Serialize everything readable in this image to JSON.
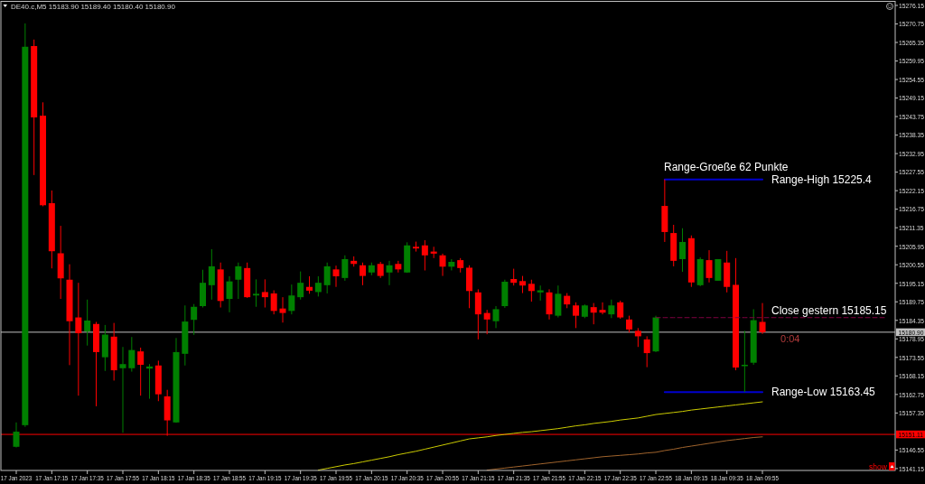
{
  "chart_data": {
    "type": "candlestick",
    "title": "DE40.c,M5 15183.90 15189.40 15180.40 15180.90",
    "categories": [
      "17 Jan 2023",
      null,
      null,
      null,
      "17 Jan 17:15",
      null,
      null,
      null,
      "17 Jan 17:35",
      null,
      null,
      null,
      "17 Jan 17:55",
      null,
      null,
      null,
      "17 Jan 18:15",
      null,
      null,
      null,
      "17 Jan 18:35",
      null,
      null,
      null,
      "17 Jan 18:55",
      null,
      null,
      null,
      "17 Jan 19:15",
      null,
      null,
      null,
      "17 Jan 19:35",
      null,
      null,
      null,
      "17 Jan 19:55",
      null,
      null,
      null,
      "17 Jan 20:15",
      null,
      null,
      null,
      "17 Jan 20:35",
      null,
      null,
      null,
      "17 Jan 20:55",
      null,
      null,
      null,
      "17 Jan 21:15",
      null,
      null,
      null,
      "17 Jan 21:35",
      null,
      null,
      null,
      "17 Jan 21:55",
      null,
      null,
      null,
      "17 Jan 22:15",
      null,
      null,
      null,
      "17 Jan 22:35",
      null,
      null,
      null,
      "17 Jan 22:55",
      null,
      null,
      null,
      "18 Jan 09:15",
      null,
      null,
      null,
      "18 Jan 09:35",
      null,
      null,
      null,
      "18 Jan 09:55",
      null,
      null,
      null,
      null,
      null,
      null,
      null,
      null,
      null,
      null,
      null,
      null,
      null,
      null
    ],
    "ohlc": [
      [
        15147.5,
        15154.6,
        15147.3,
        15151.9
      ],
      [
        15153.8,
        15270.9,
        15153.3,
        15264.1
      ],
      [
        15264.3,
        15266.2,
        15226.7,
        15243.5
      ],
      [
        15244.0,
        15247.9,
        15217.6,
        15217.9
      ],
      [
        15218.5,
        15222.2,
        15199.5,
        15204.5
      ],
      [
        15203.9,
        15211.9,
        15190.6,
        15196.6
      ],
      [
        15196.2,
        15200.7,
        15171.3,
        15184.1
      ],
      [
        15185.2,
        15195.3,
        15162.4,
        15180.6
      ],
      [
        15181.1,
        15190.4,
        15177.0,
        15184.3
      ],
      [
        15183.3,
        15183.9,
        15159.3,
        15175.1
      ],
      [
        15173.6,
        15183.0,
        15169.6,
        15180.2
      ],
      [
        15179.6,
        15183.6,
        15166.8,
        15169.8
      ],
      [
        15170.4,
        15176.6,
        15151.6,
        15171.6
      ],
      [
        15170.4,
        15179.5,
        15169.4,
        15175.7
      ],
      [
        15175.3,
        15176.4,
        15162.4,
        15171.4
      ],
      [
        15170.3,
        15171.6,
        15161.5,
        15170.9
      ],
      [
        15171.2,
        15172.6,
        15160.8,
        15162.8
      ],
      [
        15162.2,
        15164.1,
        15150.7,
        15155.2
      ],
      [
        15154.6,
        15179.2,
        15154.5,
        15175.1
      ],
      [
        15174.6,
        15188.7,
        15171.2,
        15184.0
      ],
      [
        15184.5,
        15189.1,
        15180.1,
        15188.3
      ],
      [
        15188.5,
        15199.1,
        15188.1,
        15195.3
      ],
      [
        15194.6,
        15205.1,
        15190.4,
        15200.1
      ],
      [
        15199.2,
        15201.2,
        15188.1,
        15190.0
      ],
      [
        15190.6,
        15197.2,
        15186.7,
        15195.7
      ],
      [
        15196.2,
        15201.2,
        15190.6,
        15200.1
      ],
      [
        15199.6,
        15201.2,
        15190.9,
        15191.1
      ],
      [
        15191.6,
        15196.3,
        15188.3,
        15192.1
      ],
      [
        15192.6,
        15196.3,
        15188.1,
        15191.1
      ],
      [
        15192.2,
        15193.1,
        15186.1,
        15187.1
      ],
      [
        15187.8,
        15191.1,
        15183.7,
        15186.5
      ],
      [
        15187.1,
        15194.8,
        15186.1,
        15191.6
      ],
      [
        15191.1,
        15198.6,
        15190.4,
        15195.3
      ],
      [
        15194.1,
        15197.2,
        15192.1,
        15193.0
      ],
      [
        15192.6,
        15197.2,
        15191.3,
        15195.3
      ],
      [
        15194.6,
        15201.2,
        15192.2,
        15200.1
      ],
      [
        15199.2,
        15200.3,
        15194.1,
        15197.2
      ],
      [
        15196.7,
        15203.3,
        15195.9,
        15202.2
      ],
      [
        15201.7,
        15203.0,
        15200.0,
        15200.8
      ],
      [
        15200.4,
        15201.2,
        15194.6,
        15197.3
      ],
      [
        15198.3,
        15201.2,
        15197.5,
        15200.4
      ],
      [
        15200.8,
        15201.4,
        15196.7,
        15197.3
      ],
      [
        15198.3,
        15201.7,
        15194.6,
        15200.4
      ],
      [
        15200.8,
        15201.7,
        15198.3,
        15199.2
      ],
      [
        15198.3,
        15207.1,
        15198.2,
        15206.2
      ],
      [
        15205.8,
        15207.3,
        15204.4,
        15205.3
      ],
      [
        15206.2,
        15207.7,
        15198.9,
        15203.3
      ],
      [
        15204.4,
        15205.8,
        15202.5,
        15203.8
      ],
      [
        15203.3,
        15203.8,
        15197.3,
        15200.0
      ],
      [
        15200.0,
        15202.2,
        15198.9,
        15201.4
      ],
      [
        15201.9,
        15202.5,
        15198.3,
        15199.6
      ],
      [
        15199.7,
        15200.4,
        15187.9,
        15192.9
      ],
      [
        15192.5,
        15193.4,
        15178.8,
        15186.1
      ],
      [
        15186.5,
        15187.4,
        15180.3,
        15184.6
      ],
      [
        15184.1,
        15188.5,
        15182.1,
        15187.6
      ],
      [
        15188.5,
        15196.2,
        15188.0,
        15195.6
      ],
      [
        15196.4,
        15199.4,
        15194.5,
        15195.3
      ],
      [
        15195.8,
        15197.3,
        15192.3,
        15194.5
      ],
      [
        15195.0,
        15196.2,
        15189.8,
        15192.9
      ],
      [
        15192.5,
        15194.5,
        15190.1,
        15193.1
      ],
      [
        15192.5,
        15193.4,
        15184.6,
        15186.1
      ],
      [
        15185.7,
        15194.5,
        15185.2,
        15192.1
      ],
      [
        15191.5,
        15192.3,
        15187.9,
        15189.0
      ],
      [
        15188.7,
        15189.6,
        15182.1,
        15185.7
      ],
      [
        15185.4,
        15189.0,
        15185.0,
        15188.7
      ],
      [
        15188.2,
        15189.4,
        15183.2,
        15186.6
      ],
      [
        15187.4,
        15189.6,
        15186.1,
        15186.6
      ],
      [
        15186.1,
        15190.4,
        15185.0,
        15188.7
      ],
      [
        15189.6,
        15190.1,
        15184.8,
        15185.2
      ],
      [
        15184.6,
        15185.7,
        15180.8,
        15181.7
      ],
      [
        15181.3,
        15182.1,
        15176.6,
        15179.7
      ],
      [
        15178.8,
        15179.7,
        15170.7,
        15174.8
      ],
      [
        15175.3,
        15185.7,
        15175.1,
        15185.2
      ],
      [
        15217.7,
        15225.4,
        15207.2,
        15210.1
      ],
      [
        15209.8,
        15212.2,
        15200.1,
        15201.7
      ],
      [
        15202.2,
        15211.2,
        15198.5,
        15207.2
      ],
      [
        15208.3,
        15209.1,
        15194.1,
        15195.4
      ],
      [
        15194.6,
        15202.7,
        15194.3,
        15202.2
      ],
      [
        15201.9,
        15204.8,
        15195.4,
        15196.7
      ],
      [
        15195.9,
        15202.2,
        15195.9,
        15202.2
      ],
      [
        15201.2,
        15204.6,
        15192.5,
        15194.1
      ],
      [
        15194.7,
        15202.5,
        15169.8,
        15170.6
      ],
      [
        15171.0,
        15181.3,
        15163.45,
        15171.4
      ],
      [
        15172.0,
        15187.6,
        15171.4,
        15184.4
      ],
      [
        15183.9,
        15189.4,
        15180.4,
        15180.9
      ],
      null,
      null,
      null,
      null,
      null,
      null,
      null,
      null,
      null,
      null,
      null,
      null,
      null,
      null
    ],
    "colors": [
      "#008000",
      "#008000",
      "#ff0000",
      "#ff0000",
      "#ff0000",
      "#ff0000",
      "#ff0000",
      "#ff0000",
      "#008000",
      "#ff0000",
      "#008000",
      "#ff0000",
      "#008000",
      "#008000",
      "#ff0000",
      "#008000",
      "#ff0000",
      "#ff0000",
      "#008000",
      "#008000",
      "#008000",
      "#008000",
      "#008000",
      "#ff0000",
      "#008000",
      "#008000",
      "#ff0000",
      "#008000",
      "#ff0000",
      "#ff0000",
      "#ff0000",
      "#008000",
      "#008000",
      "#ff0000",
      "#008000",
      "#008000",
      "#ff0000",
      "#008000",
      "#ff0000",
      "#ff0000",
      "#008000",
      "#ff0000",
      "#008000",
      "#ff0000",
      "#008000",
      "#ff0000",
      "#ff0000",
      "#ff0000",
      "#ff0000",
      "#008000",
      "#ff0000",
      "#ff0000",
      "#ff0000",
      "#ff0000",
      "#008000",
      "#008000",
      "#ff0000",
      "#ff0000",
      "#ff0000",
      "#008000",
      "#ff0000",
      "#008000",
      "#ff0000",
      "#ff0000",
      "#008000",
      "#ff0000",
      "#ff0000",
      "#008000",
      "#ff0000",
      "#ff0000",
      "#ff0000",
      "#ff0000",
      "#008000",
      "#ff0000",
      "#ff0000",
      "#008000",
      "#ff0000",
      "#008000",
      "#ff0000",
      "#008000",
      "#ff0000",
      "#ff0000",
      "#008000",
      "#008000",
      "#ff0000",
      null,
      null,
      null,
      null,
      null,
      null,
      null,
      null,
      null,
      null,
      null,
      null,
      null,
      null
    ],
    "series": [
      {
        "type": "line",
        "color": "#cccc00",
        "values": [
          null,
          null,
          null,
          null,
          null,
          null,
          null,
          null,
          null,
          null,
          null,
          null,
          null,
          null,
          null,
          null,
          null,
          null,
          null,
          null,
          null,
          null,
          null,
          null,
          null,
          null,
          null,
          null,
          null,
          null,
          null,
          null,
          null,
          null,
          15140.7,
          15141.2,
          15141.7,
          15142.2,
          15142.6,
          15143.1,
          15143.6,
          15144.1,
          15144.6,
          15145.2,
          15145.7,
          15146.2,
          15146.8,
          15147.4,
          15148.0,
          15148.6,
          15149.2,
          15149.8,
          15150.1,
          15150.4,
          15150.8,
          15151.1,
          15151.4,
          15151.7,
          15151.9,
          15152.2,
          15152.5,
          15152.8,
          15153.2,
          15153.6,
          15153.9,
          15154.3,
          15154.6,
          15154.9,
          15155.3,
          15155.6,
          15155.9,
          15156.4,
          15156.9,
          15157.2,
          15157.5,
          15157.8,
          15158.2,
          15158.5,
          15158.8,
          15159.1,
          15159.4,
          15159.7,
          15160.0,
          15160.3,
          15160.6,
          null,
          null,
          null,
          null,
          null,
          null,
          null,
          null,
          null,
          null,
          null,
          null,
          null,
          null
        ]
      },
      {
        "type": "line",
        "color": "#a0642d",
        "values": [
          null,
          null,
          null,
          null,
          null,
          null,
          null,
          null,
          null,
          null,
          null,
          null,
          null,
          null,
          null,
          null,
          null,
          null,
          null,
          null,
          null,
          null,
          null,
          null,
          null,
          null,
          null,
          null,
          null,
          null,
          null,
          null,
          null,
          null,
          null,
          null,
          null,
          null,
          null,
          null,
          null,
          null,
          null,
          null,
          null,
          null,
          null,
          null,
          null,
          null,
          null,
          null,
          null,
          15140.7,
          15141.0,
          15141.3,
          15141.6,
          15141.9,
          15142.2,
          15142.5,
          15142.8,
          15143.1,
          15143.4,
          15143.7,
          15144.0,
          15144.3,
          15144.6,
          15144.8,
          15145.0,
          15145.2,
          15145.4,
          15145.7,
          15145.9,
          15146.4,
          15146.8,
          15147.3,
          15147.7,
          15148.1,
          15148.5,
          15148.9,
          15149.3,
          15149.6,
          15149.9,
          15150.2,
          15150.4,
          null,
          null,
          null,
          null,
          null,
          null,
          null,
          null,
          null,
          null,
          null,
          null,
          null,
          null
        ]
      },
      {
        "type": "line",
        "name": "Range-High 15225.4",
        "color": "#0000cd",
        "values": [
          null,
          null,
          null,
          null,
          null,
          null,
          null,
          null,
          null,
          null,
          null,
          null,
          null,
          null,
          null,
          null,
          null,
          null,
          null,
          null,
          null,
          null,
          null,
          null,
          null,
          null,
          null,
          null,
          null,
          null,
          null,
          null,
          null,
          null,
          null,
          null,
          null,
          null,
          null,
          null,
          null,
          null,
          null,
          null,
          null,
          null,
          null,
          null,
          null,
          null,
          null,
          null,
          null,
          null,
          null,
          null,
          null,
          null,
          null,
          null,
          null,
          null,
          null,
          null,
          null,
          null,
          null,
          null,
          null,
          null,
          null,
          null,
          null,
          15225.4,
          15225.4,
          15225.4,
          15225.4,
          15225.4,
          15225.4,
          15225.4,
          15225.4,
          15225.4,
          15225.4,
          15225.4,
          15225.4,
          null,
          null,
          null,
          null,
          null,
          null,
          null,
          null,
          null,
          null,
          null,
          null,
          null,
          null
        ]
      },
      {
        "type": "line",
        "name": "Range-Low 15163.45",
        "color": "#0000cd",
        "values": [
          null,
          null,
          null,
          null,
          null,
          null,
          null,
          null,
          null,
          null,
          null,
          null,
          null,
          null,
          null,
          null,
          null,
          null,
          null,
          null,
          null,
          null,
          null,
          null,
          null,
          null,
          null,
          null,
          null,
          null,
          null,
          null,
          null,
          null,
          null,
          null,
          null,
          null,
          null,
          null,
          null,
          null,
          null,
          null,
          null,
          null,
          null,
          null,
          null,
          null,
          null,
          null,
          null,
          null,
          null,
          null,
          null,
          null,
          null,
          null,
          null,
          null,
          null,
          null,
          null,
          null,
          null,
          null,
          null,
          null,
          null,
          null,
          null,
          15163.45,
          15163.45,
          15163.45,
          15163.45,
          15163.45,
          15163.45,
          15163.45,
          15163.45,
          15163.45,
          15163.45,
          15163.45,
          15163.45,
          null,
          null,
          null,
          null,
          null,
          null,
          null,
          null,
          null,
          null,
          null,
          null,
          null,
          null
        ]
      },
      {
        "type": "line",
        "name": "Close gestern 15185.15",
        "color": "#800040",
        "line_style": "dashed",
        "values": [
          null,
          null,
          null,
          null,
          null,
          null,
          null,
          null,
          null,
          null,
          null,
          null,
          null,
          null,
          null,
          null,
          null,
          null,
          null,
          null,
          null,
          null,
          null,
          null,
          null,
          null,
          null,
          null,
          null,
          null,
          null,
          null,
          null,
          null,
          null,
          null,
          null,
          null,
          null,
          null,
          null,
          null,
          null,
          null,
          null,
          null,
          null,
          null,
          null,
          null,
          null,
          null,
          null,
          null,
          null,
          null,
          null,
          null,
          null,
          null,
          null,
          null,
          null,
          null,
          null,
          null,
          null,
          null,
          null,
          null,
          null,
          null,
          15185.15,
          15185.15,
          15185.15,
          15185.15,
          15185.15,
          15185.15,
          15185.15,
          15185.15,
          15185.15,
          15185.15,
          15185.15,
          15185.15,
          15185.15,
          15185.15,
          15185.15,
          15185.15,
          15185.15,
          15185.15,
          15185.15,
          15185.15,
          15185.15,
          15185.15,
          15185.15,
          15185.15,
          15185.15,
          15185.15,
          15185.15
        ]
      }
    ],
    "ylim": [
      15140.6,
      15277.2
    ],
    "yticks": [
      15276.15,
      15270.75,
      15265.35,
      15259.95,
      15254.55,
      15249.15,
      15243.75,
      15238.35,
      15232.95,
      15227.55,
      15222.15,
      15216.75,
      15211.35,
      15205.95,
      15200.55,
      15195.15,
      15189.75,
      15184.35,
      15178.95,
      15173.55,
      15168.15,
      15162.75,
      15157.35,
      15146.55,
      15141.15
    ],
    "ref_lines": [
      {
        "axis": "y",
        "value": 15180.9,
        "label": "15180.90",
        "color": "#c0c0c0"
      },
      {
        "axis": "y",
        "value": 15151.11,
        "label": "15151.11",
        "color": "#ff0000"
      }
    ],
    "annotations": [
      "Range-Groeße 62 Punkte",
      "0:04",
      "show"
    ]
  }
}
